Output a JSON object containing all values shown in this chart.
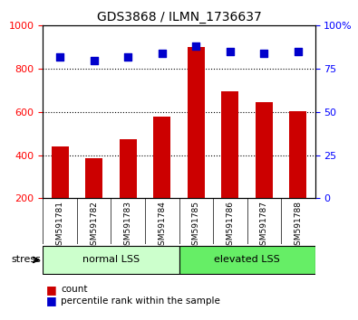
{
  "title": "GDS3868 / ILMN_1736637",
  "categories": [
    "GSM591781",
    "GSM591782",
    "GSM591783",
    "GSM591784",
    "GSM591785",
    "GSM591786",
    "GSM591787",
    "GSM591788"
  ],
  "bar_values": [
    440,
    385,
    475,
    580,
    900,
    695,
    645,
    605
  ],
  "scatter_values": [
    82,
    80,
    82,
    84,
    88,
    85,
    84,
    85
  ],
  "bar_color": "#cc0000",
  "scatter_color": "#0000cc",
  "left_ylim": [
    200,
    1000
  ],
  "right_ylim": [
    0,
    100
  ],
  "left_yticks": [
    200,
    400,
    600,
    800,
    1000
  ],
  "right_yticks": [
    0,
    25,
    50,
    75,
    100
  ],
  "grid_values": [
    400,
    600,
    800
  ],
  "group_labels": [
    "normal LSS",
    "elevated LSS"
  ],
  "group_colors": [
    "#ccffcc",
    "#66ee66"
  ],
  "group_ranges": [
    [
      0,
      4
    ],
    [
      4,
      8
    ]
  ],
  "stress_label": "stress",
  "legend_count": "count",
  "legend_pct": "percentile rank within the sample",
  "bar_width": 0.5,
  "background_color": "#e8e8e8"
}
